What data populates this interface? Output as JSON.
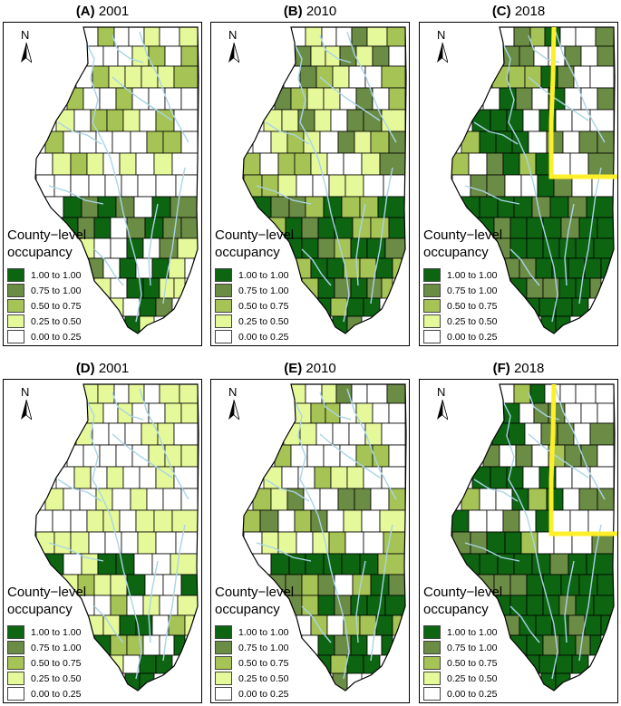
{
  "panels": [
    {
      "letter": "(A)",
      "year": "2001"
    },
    {
      "letter": "(B)",
      "year": "2010"
    },
    {
      "letter": "(C)",
      "year": "2018"
    },
    {
      "letter": "(D)",
      "year": "2001"
    },
    {
      "letter": "(E)",
      "year": "2010"
    },
    {
      "letter": "(F)",
      "year": "2018"
    }
  ],
  "north_label": "N",
  "legend": {
    "title_line1": "County−level",
    "title_line2": "occupancy",
    "entries": [
      {
        "label": "1.00 to 1.00",
        "color": "#0d6512"
      },
      {
        "label": "0.75 to 1.00",
        "color": "#6b8c44"
      },
      {
        "label": "0.50 to 0.75",
        "color": "#a6c455"
      },
      {
        "label": "0.25 to 0.50",
        "color": "#e6f99a"
      },
      {
        "label": "0.00 to 0.25",
        "color": "#ffffff"
      }
    ]
  },
  "colors": {
    "river": "#a9d4e6",
    "highlight": "#ffef2a",
    "border": "#000000"
  }
}
